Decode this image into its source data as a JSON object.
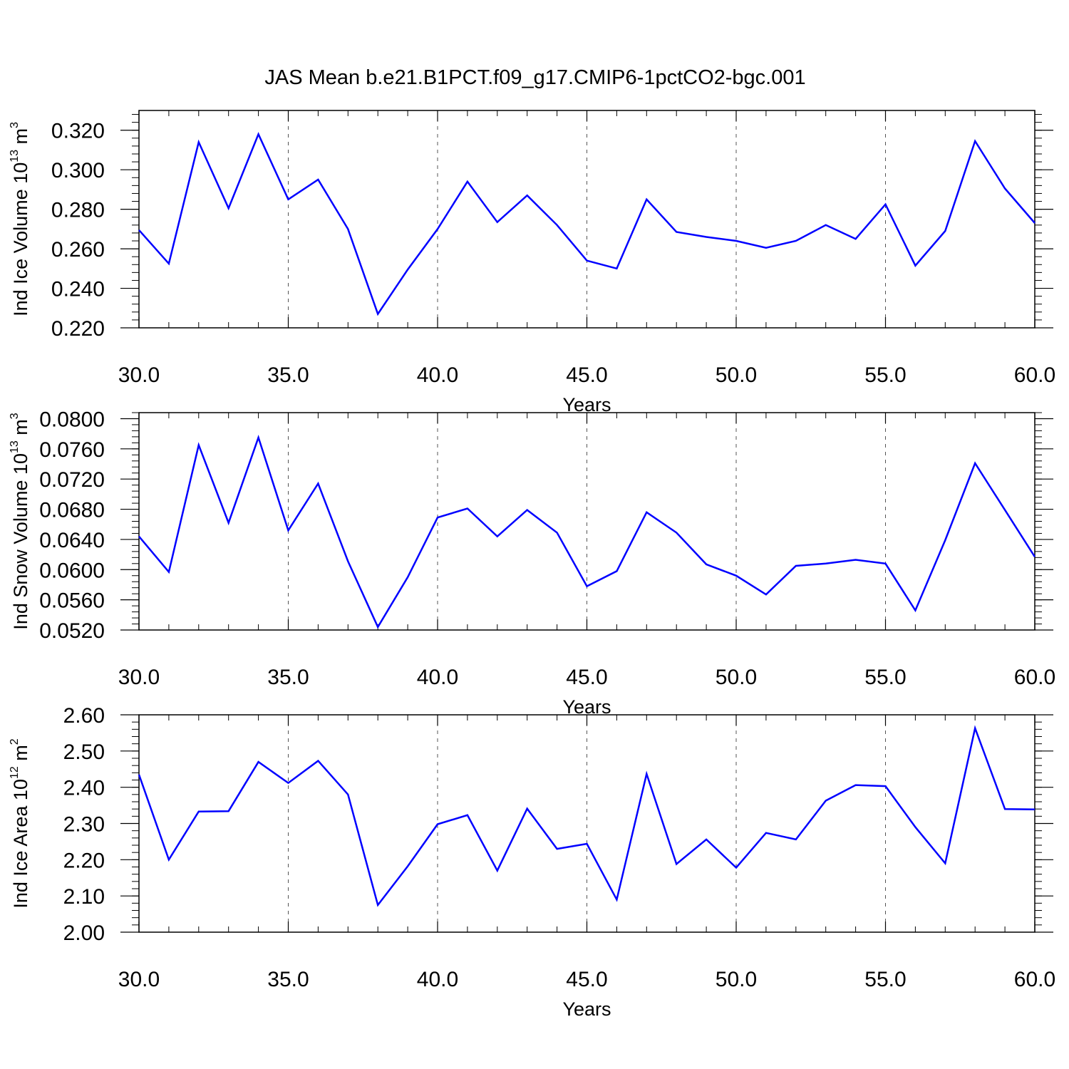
{
  "title": "JAS Mean b.e21.B1PCT.f09_g17.CMIP6-1pctCO2-bgc.001",
  "colors": {
    "line": "#0000ff",
    "axes": "#000000",
    "grid": "#555555"
  },
  "chart_data": [
    {
      "type": "line",
      "xlabel": "Years",
      "ylabel": {
        "text": "Ind Ice Volume 10",
        "sup1": "13",
        "unit": " m",
        "sup2": "3"
      },
      "xlim": [
        30,
        60
      ],
      "ylim": [
        0.22,
        0.33
      ],
      "x_ticks": [
        "30.0",
        "35.0",
        "40.0",
        "45.0",
        "50.0",
        "55.0",
        "60.0"
      ],
      "y_ticks": [
        "0.220",
        "0.240",
        "0.260",
        "0.280",
        "0.300",
        "0.320"
      ],
      "x": [
        30,
        31,
        32,
        33,
        34,
        35,
        36,
        37,
        38,
        39,
        40,
        41,
        42,
        43,
        44,
        45,
        46,
        47,
        48,
        49,
        50,
        51,
        52,
        53,
        54,
        55,
        56,
        57,
        58,
        59,
        60
      ],
      "series": [
        {
          "values": [
            0.2695,
            0.2525,
            0.314,
            0.2805,
            0.318,
            0.285,
            0.295,
            0.27,
            0.227,
            0.2495,
            0.27,
            0.294,
            0.2735,
            0.287,
            0.272,
            0.254,
            0.25,
            0.285,
            0.2685,
            0.266,
            0.264,
            0.2605,
            0.264,
            0.272,
            0.265,
            0.2825,
            0.2515,
            0.269,
            0.3145,
            0.2905,
            0.273
          ]
        }
      ]
    },
    {
      "type": "line",
      "xlabel": "Years",
      "ylabel": {
        "text": "Ind Snow Volume 10",
        "sup1": "13",
        "unit": " m",
        "sup2": "3"
      },
      "xlim": [
        30,
        60
      ],
      "ylim": [
        0.052,
        0.0808
      ],
      "x_ticks": [
        "30.0",
        "35.0",
        "40.0",
        "45.0",
        "50.0",
        "55.0",
        "60.0"
      ],
      "y_ticks": [
        "0.0520",
        "0.0560",
        "0.0600",
        "0.0640",
        "0.0680",
        "0.0720",
        "0.0760",
        "0.0800"
      ],
      "x": [
        30,
        31,
        32,
        33,
        34,
        35,
        36,
        37,
        38,
        39,
        40,
        41,
        42,
        43,
        44,
        45,
        46,
        47,
        48,
        49,
        50,
        51,
        52,
        53,
        54,
        55,
        56,
        57,
        58,
        59,
        60
      ],
      "series": [
        {
          "values": [
            0.0644,
            0.0597,
            0.0765,
            0.0662,
            0.0775,
            0.0652,
            0.0714,
            0.0611,
            0.0524,
            0.059,
            0.0669,
            0.0681,
            0.0644,
            0.0679,
            0.0649,
            0.0578,
            0.0598,
            0.0676,
            0.0649,
            0.0607,
            0.0592,
            0.0567,
            0.0605,
            0.0608,
            0.0613,
            0.0608,
            0.0546,
            0.0639,
            0.0741,
            0.0679,
            0.0617
          ]
        }
      ]
    },
    {
      "type": "line",
      "xlabel": "Years",
      "ylabel": {
        "text": "Ind Ice Area 10",
        "sup1": "12",
        "unit": " m",
        "sup2": "2"
      },
      "xlim": [
        30,
        60
      ],
      "ylim": [
        2.0,
        2.6
      ],
      "x_ticks": [
        "30.0",
        "35.0",
        "40.0",
        "45.0",
        "50.0",
        "55.0",
        "60.0"
      ],
      "y_ticks": [
        "2.00",
        "2.10",
        "2.20",
        "2.30",
        "2.40",
        "2.50",
        "2.60"
      ],
      "x": [
        30,
        31,
        32,
        33,
        34,
        35,
        36,
        37,
        38,
        39,
        40,
        41,
        42,
        43,
        44,
        45,
        46,
        47,
        48,
        49,
        50,
        51,
        52,
        53,
        54,
        55,
        56,
        57,
        58,
        59,
        60
      ],
      "series": [
        {
          "values": [
            2.435,
            2.2,
            2.333,
            2.334,
            2.47,
            2.412,
            2.473,
            2.38,
            2.075,
            2.182,
            2.298,
            2.323,
            2.17,
            2.341,
            2.23,
            2.244,
            2.09,
            2.437,
            2.188,
            2.256,
            2.178,
            2.274,
            2.256,
            2.363,
            2.406,
            2.403,
            2.29,
            2.19,
            2.563,
            2.34,
            2.339
          ]
        }
      ]
    }
  ]
}
